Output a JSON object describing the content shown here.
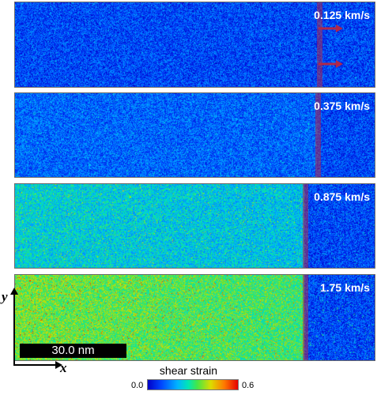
{
  "panels": [
    {
      "velocity": "0.125 km/s",
      "green": 0.05,
      "front": 0.84,
      "arrows": true
    },
    {
      "velocity": "0.375 km/s",
      "green": 0.14,
      "front": 0.835,
      "arrows": false
    },
    {
      "velocity": "0.875 km/s",
      "green": 0.5,
      "front": 0.8,
      "arrows": false
    },
    {
      "velocity": "1.75 km/s",
      "green": 0.85,
      "front": 0.8,
      "arrows": false
    }
  ],
  "scale_bar": "30.0 nm",
  "axes": {
    "x": "x",
    "y": "y"
  },
  "colorbar": {
    "title": "shear strain",
    "min": "0.0",
    "max": "0.6"
  }
}
